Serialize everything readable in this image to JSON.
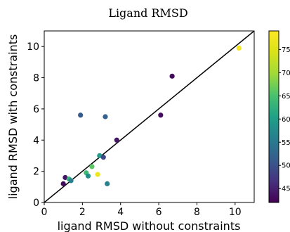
{
  "chart_data": {
    "type": "scatter",
    "title": "Ligand RMSD",
    "xlabel": "ligand RMSD without constraints",
    "ylabel": "ligand RMSD with constraints",
    "xlim": [
      0,
      11
    ],
    "ylim": [
      0,
      11
    ],
    "xticks": [
      0,
      2,
      4,
      6,
      8,
      10
    ],
    "yticks": [
      0,
      2,
      4,
      6,
      8,
      10
    ],
    "reference_line": "y = x",
    "colorbar": {
      "colormap": "viridis",
      "range": [
        42,
        79
      ],
      "ticks": [
        45,
        50,
        55,
        60,
        65,
        70,
        75
      ],
      "tick_labels": [
        "45",
        "50",
        "55",
        "60",
        "65",
        "70",
        "75"
      ]
    },
    "points": [
      {
        "x": 1.0,
        "y": 1.2,
        "c": 43
      },
      {
        "x": 1.1,
        "y": 1.6,
        "c": 44
      },
      {
        "x": 1.3,
        "y": 1.5,
        "c": 63
      },
      {
        "x": 1.4,
        "y": 1.4,
        "c": 56
      },
      {
        "x": 1.9,
        "y": 5.6,
        "c": 51
      },
      {
        "x": 2.2,
        "y": 1.9,
        "c": 64
      },
      {
        "x": 2.3,
        "y": 1.7,
        "c": 58
      },
      {
        "x": 2.5,
        "y": 2.3,
        "c": 66
      },
      {
        "x": 2.8,
        "y": 1.8,
        "c": 77
      },
      {
        "x": 2.9,
        "y": 3.0,
        "c": 60
      },
      {
        "x": 3.1,
        "y": 2.9,
        "c": 49
      },
      {
        "x": 3.2,
        "y": 5.5,
        "c": 52
      },
      {
        "x": 3.3,
        "y": 1.2,
        "c": 56
      },
      {
        "x": 3.8,
        "y": 4.0,
        "c": 44
      },
      {
        "x": 6.1,
        "y": 5.6,
        "c": 43
      },
      {
        "x": 6.7,
        "y": 8.1,
        "c": 43
      },
      {
        "x": 10.2,
        "y": 9.9,
        "c": 78
      }
    ]
  }
}
